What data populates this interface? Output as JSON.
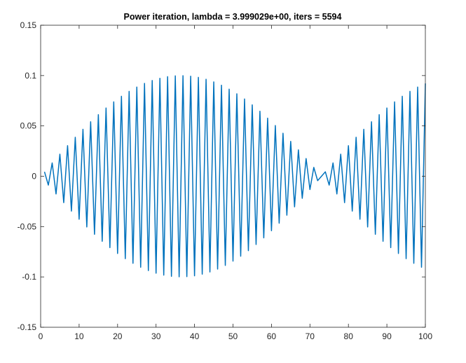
{
  "chart_data": {
    "type": "line",
    "title": "Power iteration, lambda = 3.999029e+00, iters = 5594",
    "xlabel": "",
    "ylabel": "",
    "xlim": [
      0,
      100
    ],
    "ylim": [
      -0.15,
      0.15
    ],
    "x_ticks": [
      0,
      10,
      20,
      30,
      40,
      50,
      60,
      70,
      80,
      90,
      100
    ],
    "x_tick_labels": [
      "0",
      "10",
      "20",
      "30",
      "40",
      "50",
      "60",
      "70",
      "80",
      "90",
      "100"
    ],
    "y_ticks": [
      0.15,
      0.1,
      0.05,
      0,
      -0.05,
      -0.1,
      -0.15
    ],
    "y_tick_labels": [
      "0.15",
      "0.1",
      "0.05",
      "0",
      "-0.05",
      "-0.1",
      "-0.15"
    ],
    "grid": false,
    "series": [
      {
        "x": [
          1,
          2,
          3,
          4,
          5,
          6,
          7,
          8,
          9,
          10,
          11,
          12,
          13,
          14,
          15,
          16,
          17,
          18,
          19,
          20,
          21,
          22,
          23,
          24,
          25,
          26,
          27,
          28,
          29,
          30,
          31,
          32,
          33,
          34,
          35,
          36,
          37,
          38,
          39,
          40,
          41,
          42,
          43,
          44,
          45,
          46,
          47,
          48,
          49,
          50,
          51,
          52,
          53,
          54,
          55,
          56,
          57,
          58,
          59,
          60,
          61,
          62,
          63,
          64,
          65,
          66,
          67,
          68,
          69,
          70,
          71,
          72,
          73,
          74,
          75,
          76,
          77,
          78,
          79,
          80,
          81,
          82,
          83,
          84,
          85,
          86,
          87,
          88,
          89,
          90,
          91,
          92,
          93,
          94,
          95,
          96,
          97,
          98,
          99,
          100
        ],
        "values": [
          0.0044,
          -0.0088,
          0.0132,
          -0.0176,
          0.0219,
          -0.0262,
          0.0304,
          -0.0346,
          0.0387,
          -0.0427,
          0.0466,
          -0.0504,
          0.0541,
          -0.0577,
          0.0612,
          -0.0646,
          0.0678,
          -0.0709,
          0.0739,
          -0.0767,
          0.0794,
          -0.0819,
          0.0843,
          -0.0865,
          0.0886,
          -0.0904,
          0.0922,
          -0.0937,
          0.0951,
          -0.0963,
          0.0973,
          -0.0982,
          0.0989,
          -0.0994,
          0.0997,
          -0.0999,
          0.0999,
          -0.0997,
          0.0994,
          -0.0989,
          0.0982,
          -0.0973,
          0.0963,
          -0.0951,
          0.0937,
          -0.0922,
          0.0904,
          -0.0886,
          0.0865,
          -0.0843,
          0.0819,
          -0.0794,
          0.0767,
          -0.0739,
          0.0709,
          -0.0678,
          0.0646,
          -0.0612,
          0.0577,
          -0.0541,
          0.0504,
          -0.0466,
          0.0427,
          -0.0387,
          0.0346,
          -0.0304,
          0.0262,
          -0.0219,
          0.0176,
          -0.0132,
          0.0088,
          -0.0044,
          0.0,
          0.0044,
          -0.0088,
          0.0132,
          -0.0176,
          0.0219,
          -0.0262,
          0.0304,
          -0.0346,
          0.0387,
          -0.0427,
          0.0466,
          -0.0504,
          0.0541,
          -0.0577,
          0.0612,
          -0.0646,
          0.0678,
          -0.0709,
          0.0739,
          -0.0767,
          0.0794,
          -0.0819,
          0.0843,
          -0.0865,
          0.0886,
          -0.0904,
          0.0922
        ],
        "color": "#0072BD"
      }
    ],
    "colors": {
      "line": "#0072BD",
      "axes": "#262626",
      "background": "#ffffff"
    }
  }
}
